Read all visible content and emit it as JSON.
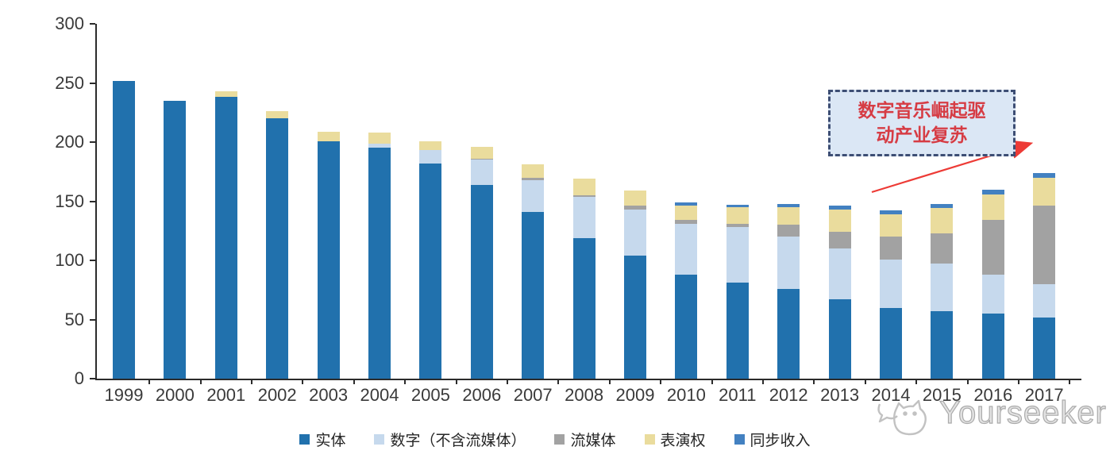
{
  "chart_data": {
    "type": "bar",
    "stacked": true,
    "title": "",
    "xlabel": "",
    "ylabel": "",
    "ylim": [
      0,
      300
    ],
    "yticks": [
      0,
      50,
      100,
      150,
      200,
      250,
      300
    ],
    "grid": false,
    "legend_position": "bottom",
    "categories": [
      "1999",
      "2000",
      "2001",
      "2002",
      "2003",
      "2004",
      "2005",
      "2006",
      "2007",
      "2008",
      "2009",
      "2010",
      "2011",
      "2012",
      "2013",
      "2014",
      "2015",
      "2016",
      "2017"
    ],
    "series": [
      {
        "name": "实体",
        "color": "#2171ad",
        "values": [
          252,
          235,
          238,
          220,
          201,
          195,
          182,
          164,
          141,
          119,
          104,
          88,
          81,
          76,
          67,
          60,
          57,
          55,
          52
        ]
      },
      {
        "name": "数字（不含流媒体）",
        "color": "#c6d9ed",
        "values": [
          0,
          0,
          0,
          0,
          0,
          4,
          11,
          21,
          27,
          35,
          39,
          43,
          47,
          44,
          43,
          41,
          40,
          33,
          28
        ]
      },
      {
        "name": "流媒体",
        "color": "#a2a2a2",
        "values": [
          0,
          0,
          0,
          0,
          0,
          0,
          0,
          1,
          2,
          1,
          3,
          3,
          3,
          10,
          14,
          19,
          26,
          46,
          66
        ]
      },
      {
        "name": "表演权",
        "color": "#eadc9d",
        "values": [
          0,
          0,
          5,
          6,
          8,
          9,
          8,
          10,
          11,
          14,
          13,
          12,
          14,
          15,
          19,
          19,
          21,
          22,
          24
        ]
      },
      {
        "name": "同步收入",
        "color": "#4381c1",
        "values": [
          0,
          0,
          0,
          0,
          0,
          0,
          0,
          0,
          0,
          0,
          0,
          3,
          2,
          3,
          3,
          3,
          4,
          4,
          4
        ]
      }
    ],
    "totals": [
      252,
      235,
      243,
      226,
      209,
      208,
      201,
      196,
      181,
      169,
      159,
      149,
      147,
      148,
      146,
      142,
      148,
      160,
      174
    ]
  },
  "annotation": {
    "line1": "数字音乐崛起驱",
    "line2": "动产业复苏",
    "text_color": "#d63c44",
    "box_fill": "#dbe7f5",
    "box_border": "#3d4e74",
    "arrow_color": "#ed3b36"
  },
  "watermark": {
    "brand": "Yourseeker"
  }
}
